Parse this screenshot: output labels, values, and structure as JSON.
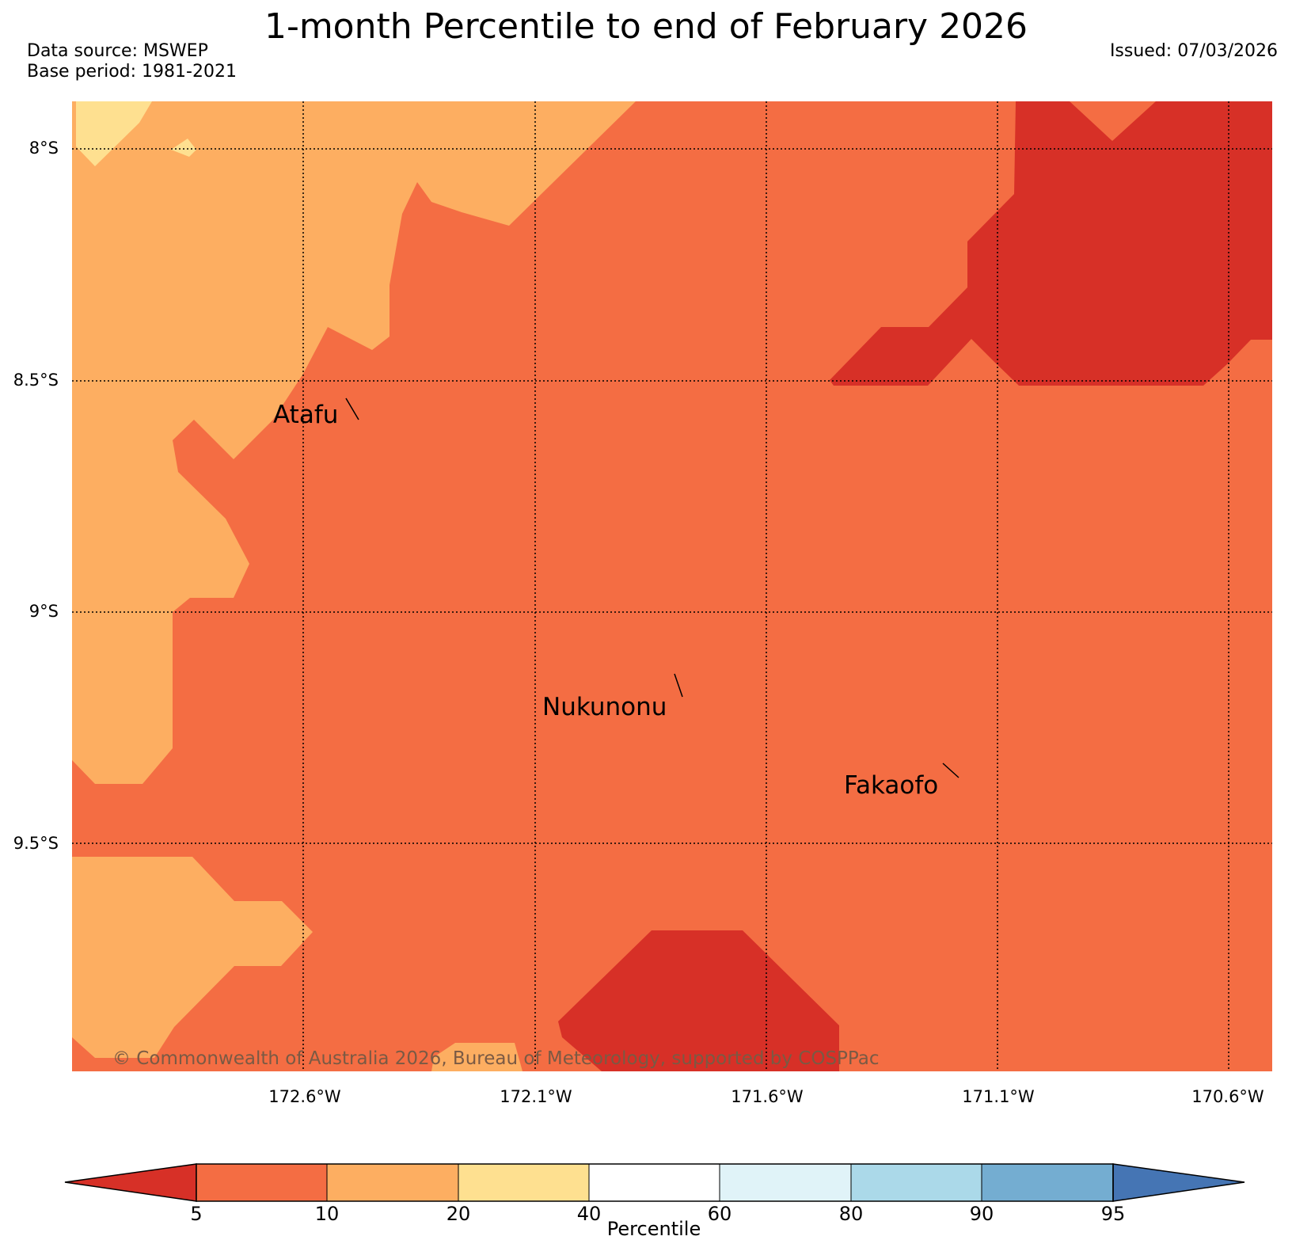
{
  "title": "1-month Percentile to end of February 2026",
  "meta": {
    "data_source": "Data source: MSWEP",
    "base_period": "Base period: 1981-2021",
    "issued": "Issued: 07/03/2026"
  },
  "axes": {
    "lat_labels": [
      "8°S",
      "8.5°S",
      "9°S",
      "9.5°S"
    ],
    "lon_labels": [
      "172.6°W",
      "172.1°W",
      "171.6°W",
      "171.1°W",
      "170.6°W"
    ]
  },
  "places": [
    {
      "name": "Atafu"
    },
    {
      "name": "Nukunonu"
    },
    {
      "name": "Fakaofo"
    }
  ],
  "copyright": "© Commonwealth of Australia 2026, Bureau of Meteorology, supported by COSPPac",
  "colorbar": {
    "title": "Percentile",
    "ticks": [
      "5",
      "10",
      "20",
      "40",
      "60",
      "80",
      "90",
      "95"
    ],
    "colors": {
      "below5": "#d73027",
      "p5_10": "#f46d43",
      "p10_20": "#fdae61",
      "p20_40": "#fee090",
      "p40_60": "#ffffff",
      "p60_80": "#e0f3f8",
      "p80_90": "#abd9e9",
      "p90_95": "#74add1",
      "above95": "#4575b4"
    }
  },
  "chart_data": {
    "type": "filled-contour map",
    "title": "1-month Percentile to end of February 2026",
    "dominant_category": "5-10",
    "regions": [
      {
        "category": "<5",
        "location": "north-east corner"
      },
      {
        "category": "<5",
        "location": "south centre"
      },
      {
        "category": "10-20",
        "location": "north-west and west edge"
      },
      {
        "category": "10-20",
        "location": "south-west corner"
      },
      {
        "category": "20-40",
        "location": "far north-west corner"
      }
    ],
    "lat_range_deg_S": [
      7.9,
      9.95
    ],
    "lon_range_deg_W": [
      173.1,
      170.5
    ]
  }
}
